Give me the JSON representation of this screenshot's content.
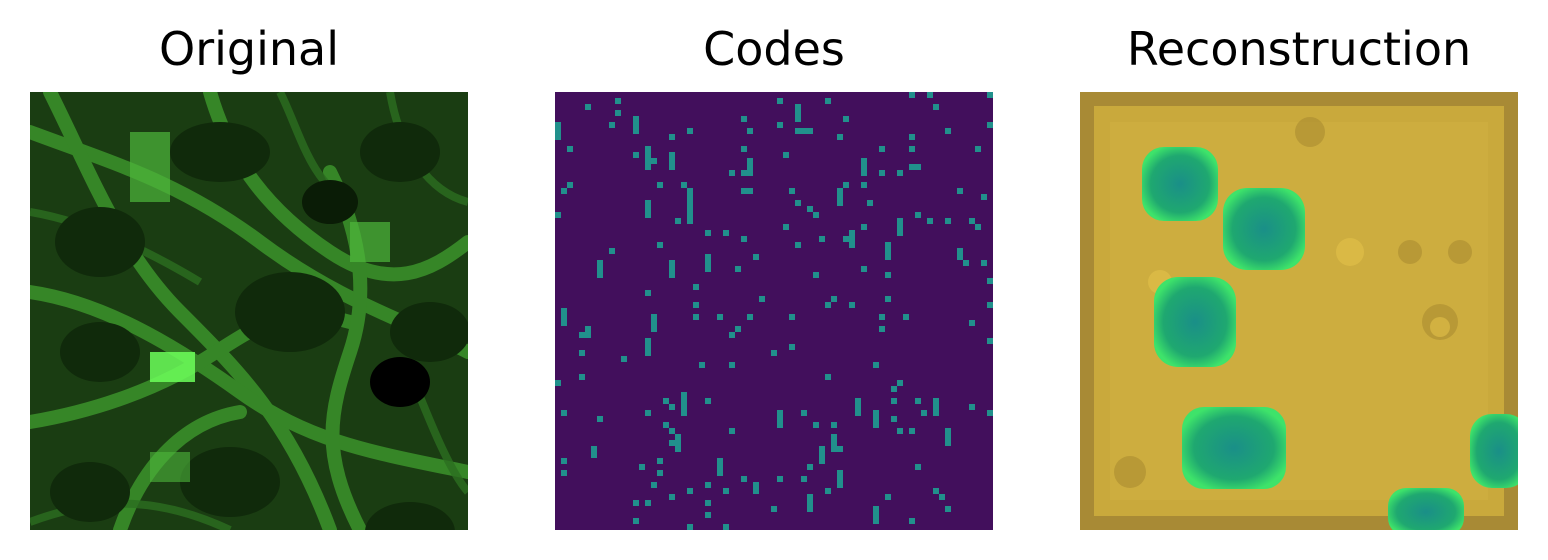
{
  "panels": [
    {
      "title": "Original"
    },
    {
      "title": "Codes"
    },
    {
      "title": "Reconstruction"
    }
  ],
  "colors": {
    "original_bg": "#1a3d12",
    "original_bright": "#3f9a2e",
    "original_highlight": "#6cff5a",
    "codes_bg": "#420f5c",
    "codes_pixel": "#21908c",
    "recon_bg": "#c8a93a",
    "recon_blob": "#1fa870",
    "recon_blob_edge": "#3ee36a"
  }
}
